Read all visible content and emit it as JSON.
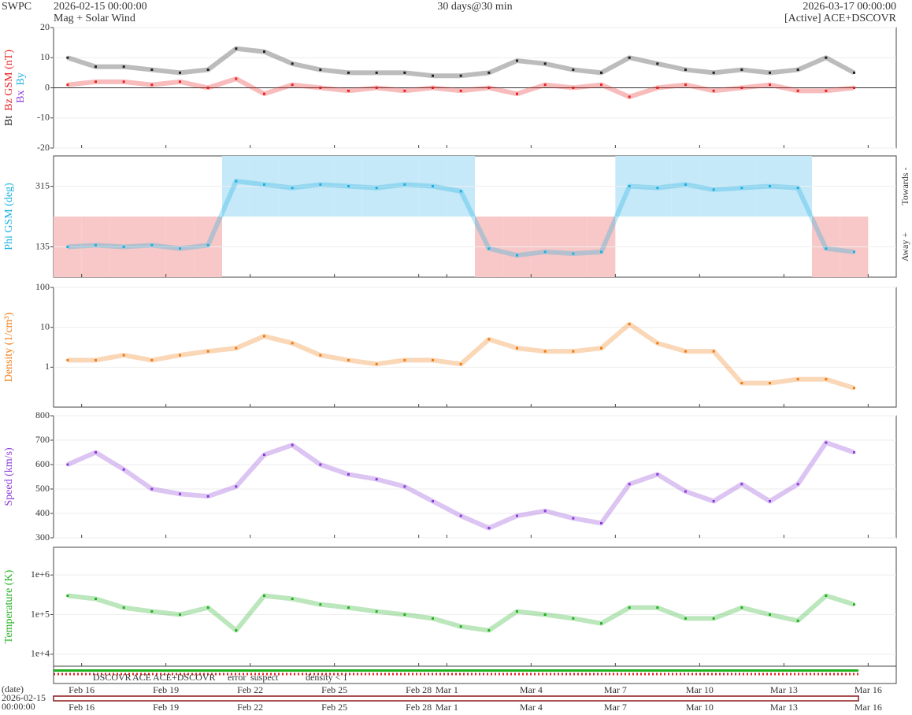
{
  "header": {
    "site": "SWPC",
    "start": "2026-02-15 00:00:00",
    "subtitle": "Mag + Solar Wind",
    "span": "30 days@30 min",
    "end": "2026-03-17 00:00:00",
    "source": "[Active] ACE+DSCOVR",
    "date_label": "(date)",
    "date_start": [
      "2026-02-15",
      "00:00:00"
    ]
  },
  "time_axis": {
    "xlim": [
      "2026-02-15T00:00",
      "2026-03-17T00:00"
    ],
    "x": [
      "2026-02-15T12:00",
      "2026-02-16T12:00",
      "2026-02-17T12:00",
      "2026-02-18T12:00",
      "2026-02-19T12:00",
      "2026-02-20T12:00",
      "2026-02-21T12:00",
      "2026-02-22T12:00",
      "2026-02-23T12:00",
      "2026-02-24T12:00",
      "2026-02-25T12:00",
      "2026-02-26T12:00",
      "2026-02-27T12:00",
      "2026-02-28T12:00",
      "2026-03-01T12:00",
      "2026-03-02T12:00",
      "2026-03-03T12:00",
      "2026-03-04T12:00",
      "2026-03-05T12:00",
      "2026-03-06T12:00",
      "2026-03-07T12:00",
      "2026-03-08T12:00",
      "2026-03-09T12:00",
      "2026-03-10T12:00",
      "2026-03-11T12:00",
      "2026-03-12T12:00",
      "2026-03-13T12:00",
      "2026-03-14T12:00",
      "2026-03-15T12:00"
    ],
    "xticks": [
      {
        "value": "2026-02-16T00:00",
        "label": "Feb 16"
      },
      {
        "value": "2026-02-19T00:00",
        "label": "Feb 19"
      },
      {
        "value": "2026-02-22T00:00",
        "label": "Feb 22"
      },
      {
        "value": "2026-02-25T00:00",
        "label": "Feb 25"
      },
      {
        "value": "2026-02-28T00:00",
        "label": "Feb 28"
      },
      {
        "value": "2026-03-01T00:00",
        "label": "Mar 1"
      },
      {
        "value": "2026-03-04T00:00",
        "label": "Mar 4"
      },
      {
        "value": "2026-03-07T00:00",
        "label": "Mar 7"
      },
      {
        "value": "2026-03-10T00:00",
        "label": "Mar 10"
      },
      {
        "value": "2026-03-13T00:00",
        "label": "Mar 13"
      },
      {
        "value": "2026-03-16T00:00",
        "label": "Mar 16"
      }
    ]
  },
  "chart_data": [
    {
      "type": "scatter",
      "ylim": [
        -20,
        20
      ],
      "yticks": [
        -20,
        -10,
        0,
        10,
        20
      ],
      "zero_line": true,
      "extra_labels": [
        {
          "text": "Bx",
          "color": "#8a3ad8"
        },
        {
          "text": "By",
          "color": "#1cb0e0"
        }
      ],
      "series": [
        {
          "name": "Bt",
          "color": "#202020",
          "values": [
            10,
            7,
            7,
            6,
            5,
            6,
            13,
            12,
            8,
            6,
            5,
            5,
            5,
            4,
            4,
            5,
            9,
            8,
            6,
            5,
            10,
            8,
            6,
            5,
            6,
            5,
            6,
            10,
            5
          ]
        },
        {
          "name": "Bz GSM (nT)",
          "color": "#e82020",
          "values": [
            1,
            2,
            2,
            1,
            2,
            0,
            3,
            -2,
            1,
            0,
            -1,
            0,
            -1,
            0,
            -1,
            0,
            -2,
            1,
            0,
            1,
            -3,
            0,
            1,
            -1,
            0,
            1,
            -1,
            -1,
            0
          ]
        }
      ]
    },
    {
      "type": "sector",
      "ylim": [
        45,
        405
      ],
      "yticks": [
        135,
        315
      ],
      "right_labels": [
        "Towards -",
        "Away +"
      ],
      "sector_colors": [
        "#c5e9f8",
        "#f8c8c8"
      ],
      "series": [
        {
          "name": "Phi GSM (deg)",
          "color": "#1cb0e0",
          "values": [
            135,
            140,
            135,
            140,
            130,
            140,
            330,
            320,
            310,
            320,
            315,
            310,
            320,
            315,
            300,
            130,
            110,
            120,
            115,
            120,
            315,
            310,
            320,
            305,
            310,
            315,
            310,
            130,
            120
          ]
        }
      ]
    },
    {
      "type": "scatter",
      "log": true,
      "ylim": [
        0.1,
        100
      ],
      "yticks": [
        1,
        10,
        100
      ],
      "series": [
        {
          "name": "Density (1/cm³)",
          "color": "#f07a10",
          "values": [
            1.5,
            1.5,
            2,
            1.5,
            2,
            2.5,
            3,
            6,
            4,
            2,
            1.5,
            1.2,
            1.5,
            1.5,
            1.2,
            5,
            3,
            2.5,
            2.5,
            3,
            12,
            4,
            2.5,
            2.5,
            0.4,
            0.4,
            0.5,
            0.5,
            0.3
          ]
        }
      ]
    },
    {
      "type": "scatter",
      "ylim": [
        300,
        800
      ],
      "yticks": [
        300,
        400,
        500,
        600,
        700,
        800
      ],
      "series": [
        {
          "name": "Speed (km/s)",
          "color": "#8a3ad8",
          "values": [
            600,
            650,
            580,
            500,
            480,
            470,
            510,
            640,
            680,
            600,
            560,
            540,
            510,
            450,
            390,
            340,
            390,
            410,
            380,
            360,
            520,
            560,
            490,
            450,
            520,
            450,
            520,
            690,
            650
          ]
        }
      ]
    },
    {
      "type": "scatter",
      "log": true,
      "ylim": [
        5000,
        5000000
      ],
      "yticks": [
        {
          "value": 10000,
          "label": "1e+4"
        },
        {
          "value": 100000,
          "label": "1e+5"
        },
        {
          "value": 1000000,
          "label": "1e+6"
        }
      ],
      "series": [
        {
          "name": "Temperature (K)",
          "color": "#20b020",
          "values": [
            300000,
            250000,
            150000,
            120000,
            100000,
            150000,
            40000,
            300000,
            250000,
            180000,
            150000,
            120000,
            100000,
            80000,
            50000,
            40000,
            120000,
            100000,
            80000,
            60000,
            150000,
            150000,
            80000,
            80000,
            150000,
            100000,
            70000,
            300000,
            180000
          ]
        }
      ]
    }
  ],
  "source_legend": [
    {
      "label": "DSCOVR",
      "color": "#0000cc"
    },
    {
      "label": "ACE",
      "color": "#20b020"
    },
    {
      "label": "ACE+DSCOVR",
      "color": "#e020e0"
    },
    {
      "label": "error",
      "color": "#e82020"
    },
    {
      "label": "suspect",
      "color": "#e0a000"
    },
    {
      "label": "density < 1",
      "color": "#f07a10"
    }
  ]
}
